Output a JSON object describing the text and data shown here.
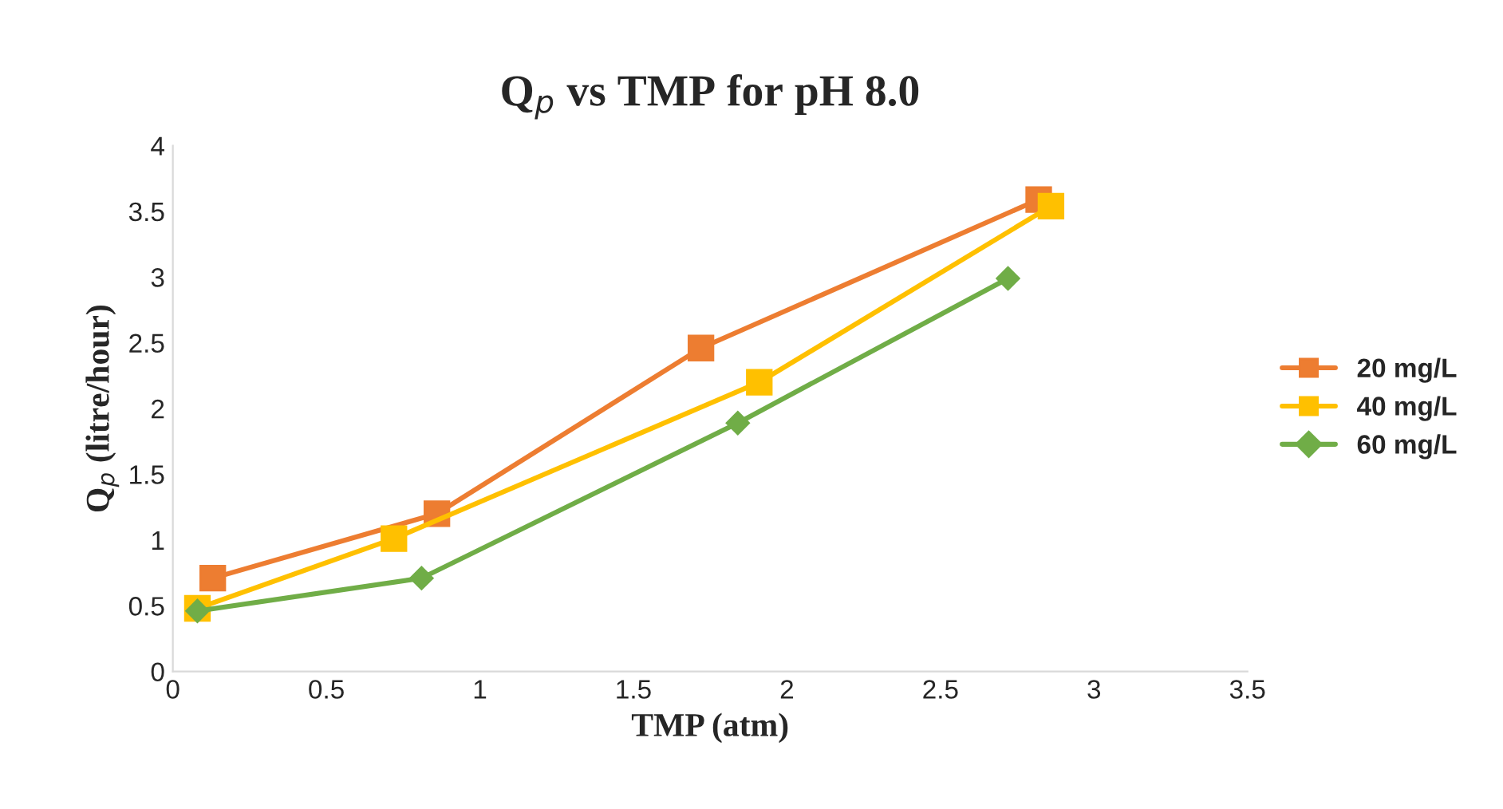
{
  "chart_data": {
    "type": "line",
    "title": "Q$_{p}$ vs TMP for pH 8.0",
    "xlabel": "TMP (atm)",
    "ylabel": "Q$_{p}$ (litre/hour)",
    "xlim": [
      0,
      3.5
    ],
    "xticks": [
      0,
      0.5,
      1,
      1.5,
      2,
      2.5,
      3,
      3.5
    ],
    "ylim": [
      0,
      4
    ],
    "yticks": [
      0,
      0.5,
      1,
      1.5,
      2,
      2.5,
      3,
      3.5,
      4
    ],
    "grid": false,
    "legend": "right",
    "series": [
      {
        "name": "20 mg/L",
        "color": "#ed7d31",
        "marker": "square",
        "x": [
          0.13,
          0.86,
          1.72,
          2.82
        ],
        "values": [
          0.71,
          1.2,
          2.46,
          3.59
        ]
      },
      {
        "name": "40 mg/L",
        "color": "#ffc000",
        "marker": "square",
        "x": [
          0.08,
          0.72,
          1.91,
          2.86
        ],
        "values": [
          0.48,
          1.01,
          2.2,
          3.54
        ]
      },
      {
        "name": "60 mg/L",
        "color": "#70ad47",
        "marker": "diamond",
        "x": [
          0.08,
          0.81,
          1.84,
          2.72
        ],
        "values": [
          0.46,
          0.71,
          1.89,
          2.99
        ]
      }
    ]
  }
}
